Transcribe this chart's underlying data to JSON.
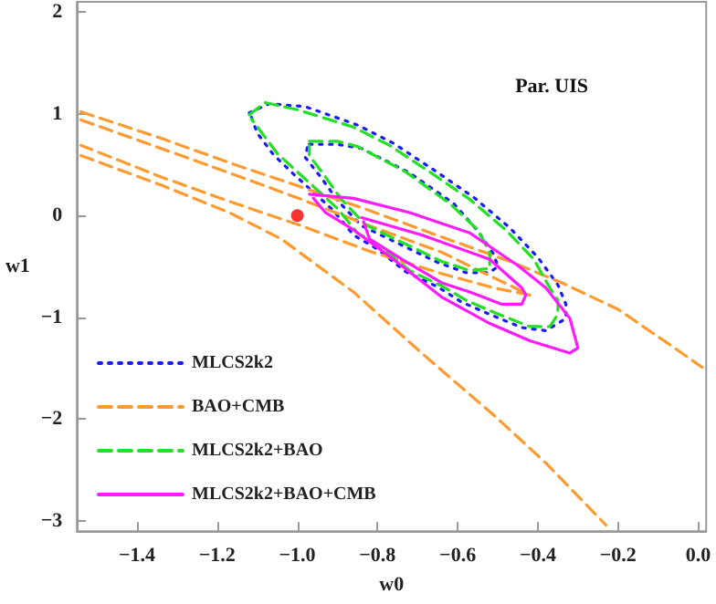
{
  "chart_data": {
    "type": "line",
    "xlabel": "w0",
    "ylabel": "w1",
    "annotations": [
      "Par. UIS"
    ],
    "xlim": [
      -1.55,
      0.02
    ],
    "ylim": [
      -3.1,
      2.1
    ],
    "xticks": [
      {
        "value": -1.4,
        "label": "−1.4"
      },
      {
        "value": -1.2,
        "label": "−1.2"
      },
      {
        "value": -1.0,
        "label": "−1.0"
      },
      {
        "value": -0.8,
        "label": "−0.8"
      },
      {
        "value": -0.6,
        "label": "−0.6"
      },
      {
        "value": -0.4,
        "label": "−0.4"
      },
      {
        "value": -0.2,
        "label": "−0.2"
      },
      {
        "value": 0,
        "label": "0.0"
      }
    ],
    "yticks": [
      {
        "value": -3,
        "label": "−3"
      },
      {
        "value": -2,
        "label": "−2"
      },
      {
        "value": -1,
        "label": "−1"
      },
      0,
      1,
      2
    ],
    "grid": false,
    "legend": "bottom left",
    "marker": "none",
    "series": [
      {
        "name": "MLCS2k2",
        "color": "#1a1aff",
        "line_style": "dotted",
        "x": [
          -1.12,
          -1.07,
          -0.98,
          -0.85,
          -0.76,
          -0.66,
          -0.56,
          -0.47,
          -0.4,
          -0.35,
          -0.33,
          -0.33,
          -0.38,
          -0.44,
          -0.52,
          -0.59,
          -0.65,
          -0.73,
          -0.8,
          -0.86,
          -0.91,
          -1.01,
          -1.06,
          -1.1,
          -1.115
        ],
        "values": [
          1.01,
          1.1,
          1.07,
          0.89,
          0.71,
          0.45,
          0.18,
          -0.12,
          -0.41,
          -0.68,
          -0.87,
          -1.01,
          -1.13,
          -1.1,
          -0.97,
          -0.85,
          -0.7,
          -0.55,
          -0.33,
          -0.19,
          0.05,
          0.41,
          0.6,
          0.81,
          0.97
        ]
      },
      {
        "color": "#1a1aff",
        "line_style": "dotted",
        "x": [
          -0.97,
          -0.9,
          -0.84,
          -0.72,
          -0.61,
          -0.55,
          -0.51,
          -0.5,
          -0.52,
          -0.58,
          -0.65,
          -0.75,
          -0.84,
          -0.9,
          -0.94,
          -0.98,
          -0.975
        ],
        "values": [
          0.7,
          0.7,
          0.66,
          0.42,
          0.12,
          -0.15,
          -0.38,
          -0.5,
          -0.56,
          -0.56,
          -0.46,
          -0.27,
          -0.1,
          0.15,
          0.37,
          0.57,
          0.67
        ]
      },
      {
        "name": "BAO+CMB",
        "color": "#ff9a2e",
        "line_style": "dashed",
        "x": [
          -1.54,
          -1.34,
          -1.17,
          -0.99,
          -0.82,
          -0.64,
          -0.47,
          -0.34,
          -0.2,
          -0.07,
          0.01
        ],
        "values": [
          1.02,
          0.76,
          0.52,
          0.28,
          0.05,
          -0.21,
          -0.45,
          -0.66,
          -0.92,
          -1.27,
          -1.49
        ]
      },
      {
        "color": "#ff9a2e",
        "line_style": "dashed",
        "x": [
          -1.54,
          -1.34,
          -1.17,
          -0.99,
          -0.82,
          -0.64,
          -0.51,
          -0.42,
          -0.51,
          -0.64,
          -0.82,
          -0.99,
          -1.17,
          -1.34,
          -1.54
        ],
        "values": [
          0.94,
          0.66,
          0.42,
          0.16,
          -0.1,
          -0.36,
          -0.61,
          -0.78,
          -0.71,
          -0.57,
          -0.35,
          -0.1,
          0.14,
          0.38,
          0.69
        ]
      },
      {
        "color": "#ff9a2e",
        "line_style": "dashed",
        "x": [
          -1.54,
          -1.34,
          -1.17,
          -1.04,
          -0.86,
          -0.69,
          -0.51,
          -0.38,
          -0.23
        ],
        "values": [
          0.59,
          0.3,
          0.03,
          -0.23,
          -0.75,
          -1.35,
          -1.96,
          -2.43,
          -3.04
        ]
      },
      {
        "name": "MLCS2k2+BAO",
        "color": "#22e022",
        "line_style": "dashed",
        "x": [
          -1.12,
          -1.08,
          -1.0,
          -0.86,
          -0.77,
          -0.67,
          -0.57,
          -0.48,
          -0.41,
          -0.37,
          -0.35,
          -0.35,
          -0.37,
          -0.42,
          -0.51,
          -0.58,
          -0.64,
          -0.72,
          -0.79,
          -0.85,
          -0.9,
          -1.0,
          -1.05,
          -1.09,
          -1.115
        ],
        "values": [
          0.99,
          1.11,
          1.04,
          0.87,
          0.69,
          0.43,
          0.16,
          -0.14,
          -0.43,
          -0.71,
          -0.83,
          -0.97,
          -1.09,
          -1.09,
          -0.95,
          -0.83,
          -0.69,
          -0.54,
          -0.31,
          -0.17,
          0.07,
          0.43,
          0.61,
          0.82,
          0.95
        ]
      },
      {
        "color": "#22e022",
        "line_style": "dashed",
        "x": [
          -0.97,
          -0.9,
          -0.85,
          -0.73,
          -0.62,
          -0.55,
          -0.52,
          -0.52,
          -0.52,
          -0.57,
          -0.64,
          -0.74,
          -0.83,
          -0.89,
          -0.93,
          -0.97,
          -0.97
        ],
        "values": [
          0.73,
          0.73,
          0.68,
          0.43,
          0.12,
          -0.14,
          -0.36,
          -0.49,
          -0.52,
          -0.54,
          -0.45,
          -0.26,
          -0.09,
          0.16,
          0.38,
          0.59,
          0.69
        ]
      },
      {
        "name": "MLCS2k2+BAO+CMB",
        "color": "#ff1aff",
        "line_style": "solid",
        "x": [
          -0.97,
          -0.86,
          -0.72,
          -0.57,
          -0.45,
          -0.38,
          -0.32,
          -0.3,
          -0.32,
          -0.42,
          -0.52,
          -0.64,
          -0.77,
          -0.86,
          -0.93,
          -0.96
        ],
        "values": [
          0.21,
          0.17,
          0.03,
          -0.17,
          -0.49,
          -0.71,
          -1.01,
          -1.3,
          -1.35,
          -1.23,
          -1.06,
          -0.8,
          -0.4,
          -0.14,
          0.03,
          0.17
        ]
      },
      {
        "color": "#ff1aff",
        "line_style": "solid",
        "x": [
          -0.84,
          -0.69,
          -0.52,
          -0.44,
          -0.43,
          -0.44,
          -0.49,
          -0.57,
          -0.64,
          -0.73,
          -0.82,
          -0.835
        ],
        "values": [
          -0.02,
          -0.19,
          -0.43,
          -0.71,
          -0.78,
          -0.87,
          -0.87,
          -0.75,
          -0.66,
          -0.45,
          -0.23,
          -0.06
        ]
      },
      {
        "type": "scatter",
        "color": "#ff0000",
        "marker": "circle",
        "x": [
          -1.0
        ],
        "values": [
          0
        ]
      }
    ]
  }
}
